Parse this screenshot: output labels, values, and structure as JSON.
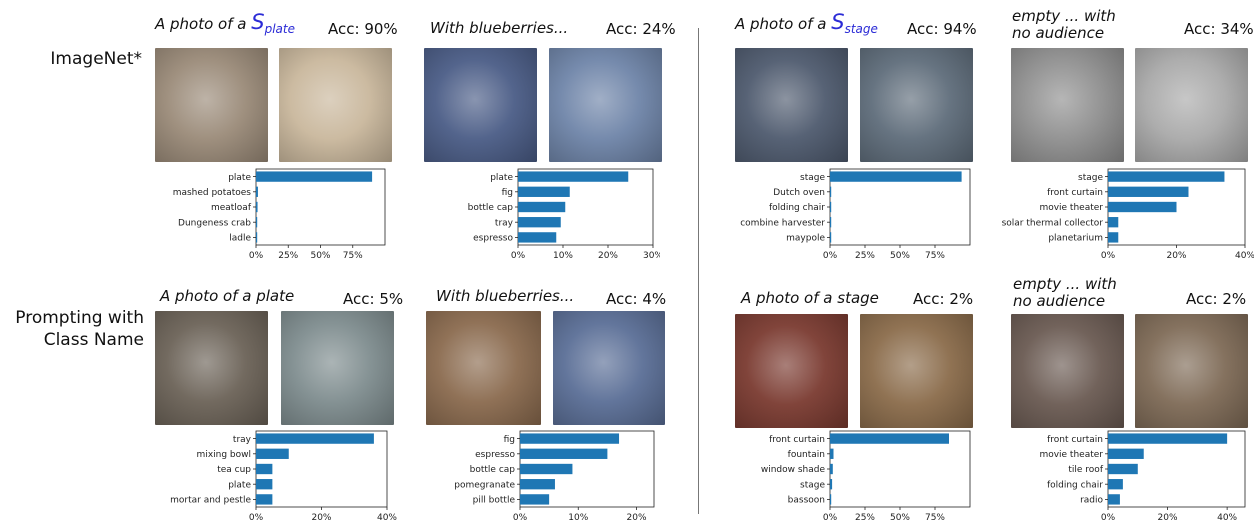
{
  "row_labels": [
    "ImageNet*",
    "Prompting with Class Name"
  ],
  "panels": [
    {
      "caption_prefix": "A photo of a ",
      "caption_symbol": "S",
      "caption_subscript": "plate",
      "caption": "",
      "accuracy": "Acc: 90%",
      "image_colors": [
        "#9a8a78",
        "#c9b79c"
      ]
    },
    {
      "caption": "With blueberries...",
      "accuracy": "Acc: 24%",
      "image_colors": [
        "#4a5c86",
        "#6e84a8"
      ]
    },
    {
      "caption_prefix": "A photo of a ",
      "caption_symbol": "S",
      "caption_subscript": "stage",
      "caption": "",
      "accuracy": "Acc: 94%",
      "image_colors": [
        "#4e5a6e",
        "#5e6c7a"
      ]
    },
    {
      "caption": "empty ... with no audience",
      "accuracy": "Acc: 34%",
      "image_colors": [
        "#8f8f8f",
        "#a9a9a9"
      ]
    },
    {
      "caption": "A photo of a plate",
      "accuracy": "Acc: 5%",
      "image_colors": [
        "#6b6257",
        "#7e8c8e"
      ]
    },
    {
      "caption": "With blueberries...",
      "accuracy": "Acc: 4%",
      "image_colors": [
        "#8a6a4e",
        "#5a6e96"
      ]
    },
    {
      "caption": "A photo of a stage",
      "accuracy": "Acc: 2%",
      "image_colors": [
        "#7a3a30",
        "#8a6b4a"
      ]
    },
    {
      "caption": "empty ... with no audience",
      "accuracy": "Acc: 2%",
      "image_colors": [
        "#6a5a52",
        "#7e6a56"
      ]
    }
  ],
  "chart_data": [
    {
      "type": "bar",
      "orientation": "horizontal",
      "categories": [
        "plate",
        "mashed potatoes",
        "meatloaf",
        "Dungeness crab",
        "ladle"
      ],
      "values": [
        90,
        1.5,
        1.2,
        0.8,
        0.6
      ],
      "xlim": [
        0,
        100
      ],
      "xticks": [
        0,
        25,
        50,
        75
      ],
      "xtick_labels": [
        "0%",
        "25%",
        "50%",
        "75%"
      ],
      "color": "#1f77b4"
    },
    {
      "type": "bar",
      "orientation": "horizontal",
      "categories": [
        "plate",
        "fig",
        "bottle cap",
        "tray",
        "espresso"
      ],
      "values": [
        24.5,
        11.5,
        10.5,
        9.5,
        8.5
      ],
      "xlim": [
        0,
        30
      ],
      "xticks": [
        0,
        10,
        20,
        30
      ],
      "xtick_labels": [
        "0%",
        "10%",
        "20%",
        "30%"
      ],
      "color": "#1f77b4"
    },
    {
      "type": "bar",
      "orientation": "horizontal",
      "categories": [
        "stage",
        "Dutch oven",
        "folding chair",
        "combine harvester",
        "maypole"
      ],
      "values": [
        94,
        0.5,
        0.4,
        0.3,
        0.2
      ],
      "xlim": [
        0,
        100
      ],
      "xticks": [
        0,
        25,
        50,
        75
      ],
      "xtick_labels": [
        "0%",
        "25%",
        "50%",
        "75%"
      ],
      "color": "#1f77b4"
    },
    {
      "type": "bar",
      "orientation": "horizontal",
      "categories": [
        "stage",
        "front curtain",
        "movie theater",
        "solar thermal collector",
        "planetarium"
      ],
      "values": [
        34,
        23.5,
        20,
        3,
        3
      ],
      "xlim": [
        0,
        40
      ],
      "xticks": [
        0,
        20,
        40
      ],
      "xtick_labels": [
        "0%",
        "20%",
        "40%"
      ],
      "color": "#1f77b4"
    },
    {
      "type": "bar",
      "orientation": "horizontal",
      "categories": [
        "tray",
        "mixing bowl",
        "tea cup",
        "plate",
        "mortar and pestle"
      ],
      "values": [
        36,
        10,
        5,
        5,
        5
      ],
      "xlim": [
        0,
        40
      ],
      "xticks": [
        0,
        20,
        40
      ],
      "xtick_labels": [
        "0%",
        "20%",
        "40%"
      ],
      "color": "#1f77b4"
    },
    {
      "type": "bar",
      "orientation": "horizontal",
      "categories": [
        "fig",
        "espresso",
        "bottle cap",
        "pomegranate",
        "pill bottle"
      ],
      "values": [
        17,
        15,
        9,
        6,
        5
      ],
      "xlim": [
        0,
        23
      ],
      "xticks": [
        0,
        10,
        20
      ],
      "xtick_labels": [
        "0%",
        "10%",
        "20%"
      ],
      "color": "#1f77b4"
    },
    {
      "type": "bar",
      "orientation": "horizontal",
      "categories": [
        "front curtain",
        "fountain",
        "window shade",
        "stage",
        "bassoon"
      ],
      "values": [
        85,
        2.5,
        2,
        1.5,
        0.5
      ],
      "xlim": [
        0,
        100
      ],
      "xticks": [
        0,
        25,
        50,
        75
      ],
      "xtick_labels": [
        "0%",
        "25%",
        "50%",
        "75%"
      ],
      "color": "#1f77b4"
    },
    {
      "type": "bar",
      "orientation": "horizontal",
      "categories": [
        "front curtain",
        "movie theater",
        "tile roof",
        "folding chair",
        "radio"
      ],
      "values": [
        40,
        12,
        10,
        5,
        4
      ],
      "xlim": [
        0,
        46
      ],
      "xticks": [
        0,
        20,
        40
      ],
      "xtick_labels": [
        "0%",
        "20%",
        "40%"
      ],
      "color": "#1f77b4"
    }
  ]
}
